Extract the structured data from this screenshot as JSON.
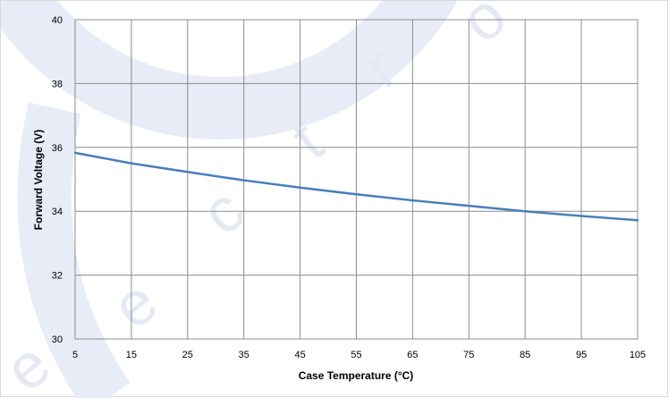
{
  "chart_data": {
    "type": "line",
    "title": "",
    "xlabel": "Case Temperature (°C)",
    "ylabel": "Forward Voltage (V)",
    "xlim": [
      5,
      105
    ],
    "ylim": [
      30,
      40
    ],
    "xticks": [
      5,
      15,
      25,
      35,
      45,
      55,
      65,
      75,
      85,
      95,
      105
    ],
    "yticks": [
      30,
      32,
      34,
      36,
      38,
      40
    ],
    "grid": true,
    "legend": "none",
    "series": [
      {
        "color": "#4a7ebb",
        "x": [
          5,
          15,
          25,
          35,
          45,
          55,
          65,
          75,
          85,
          95,
          105
        ],
        "y": [
          35.83,
          35.5,
          35.23,
          34.97,
          34.74,
          34.53,
          34.34,
          34.17,
          34.0,
          33.85,
          33.72
        ]
      }
    ]
  }
}
